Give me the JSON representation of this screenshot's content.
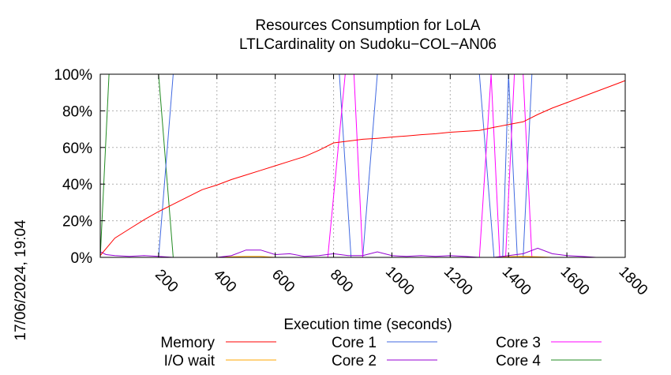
{
  "chart_data": {
    "type": "line",
    "title": "Resources Consumption for LoLA",
    "subtitle": "LTLCardinality on Sudoku−COL−AN06",
    "xlabel": "Execution time (seconds)",
    "ylabel": "",
    "side_label": "17/06/2024, 19:04",
    "xlim": [
      0,
      1800
    ],
    "ylim": [
      0,
      100
    ],
    "x_ticks": [
      200,
      400,
      600,
      800,
      1000,
      1200,
      1400,
      1600,
      1800
    ],
    "y_ticks": [
      0,
      20,
      40,
      60,
      80,
      100
    ],
    "y_tick_labels": [
      "0%",
      "20%",
      "40%",
      "60%",
      "80%",
      "100%"
    ],
    "grid": true,
    "legend_position": "bottom",
    "series": [
      {
        "name": "Memory",
        "color": "#ff0000",
        "x": [
          0,
          50,
          100,
          150,
          200,
          250,
          300,
          350,
          400,
          450,
          500,
          550,
          600,
          650,
          700,
          750,
          800,
          850,
          900,
          950,
          1000,
          1050,
          1100,
          1150,
          1200,
          1250,
          1300,
          1350,
          1400,
          1450,
          1500,
          1550,
          1600,
          1650,
          1700,
          1750,
          1800
        ],
        "y": [
          1,
          10.5,
          15.5,
          20.5,
          25,
          29,
          33,
          37,
          39.5,
          42.5,
          45,
          47.5,
          50,
          52.5,
          55,
          58.5,
          62.5,
          63.5,
          64.5,
          65,
          65.7,
          66.3,
          67,
          67.5,
          68.3,
          68.8,
          69.3,
          71,
          72.5,
          74,
          78,
          81.5,
          84.5,
          87.5,
          90.5,
          93.5,
          96.5
        ]
      },
      {
        "name": "I/O wait",
        "color": "#ffa500",
        "x": [
          0,
          400,
          450,
          500,
          550,
          600,
          1000,
          1350,
          1400,
          1450,
          1500,
          1550,
          1800
        ],
        "y": [
          0,
          0,
          0.3,
          0.5,
          0.5,
          0,
          0,
          0,
          0.4,
          0.5,
          0.3,
          0,
          0
        ]
      },
      {
        "name": "Core 1",
        "color": "#4169e1",
        "x": [
          0,
          200,
          250,
          820,
          860,
          900,
          950,
          1000,
          1200,
          1300,
          1350,
          1380,
          1400,
          1430,
          1450,
          1480,
          1500,
          1540,
          1800
        ],
        "y": [
          0,
          0,
          100,
          100,
          0,
          0,
          100,
          100,
          100,
          100,
          0,
          0,
          100,
          0,
          0,
          100,
          100,
          100,
          100
        ]
      },
      {
        "name": "Core 2",
        "color": "#9400d3",
        "x": [
          0,
          20,
          50,
          100,
          150,
          200,
          250,
          300,
          350,
          400,
          450,
          500,
          550,
          600,
          650,
          700,
          750,
          800,
          850,
          900,
          950,
          1000,
          1050,
          1100,
          1150,
          1200,
          1250,
          1300,
          1350,
          1400,
          1450,
          1500,
          1550,
          1600,
          1650,
          1700,
          1800
        ],
        "y": [
          3,
          1.5,
          1,
          0.5,
          1,
          0.5,
          0,
          0,
          0,
          0,
          1,
          4,
          4,
          1.5,
          2,
          0.5,
          1,
          2,
          1,
          1,
          3,
          1,
          0.5,
          1,
          0.5,
          1,
          0.5,
          0,
          0,
          1,
          2,
          5,
          2,
          1,
          0.5,
          0,
          0
        ]
      },
      {
        "name": "Core 3",
        "color": "#ff00ff",
        "x": [
          0,
          780,
          840,
          870,
          900,
          950,
          1300,
          1340,
          1370,
          1390,
          1420,
          1450,
          1480,
          1500,
          1540,
          1800
        ],
        "y": [
          0,
          0,
          100,
          100,
          0,
          0,
          0,
          100,
          0,
          0,
          100,
          100,
          0,
          0,
          0,
          0
        ]
      },
      {
        "name": "Core 4",
        "color": "#228b22",
        "x": [
          0,
          30,
          200,
          250,
          1800
        ],
        "y": [
          0,
          100,
          100,
          0,
          0
        ]
      }
    ]
  }
}
